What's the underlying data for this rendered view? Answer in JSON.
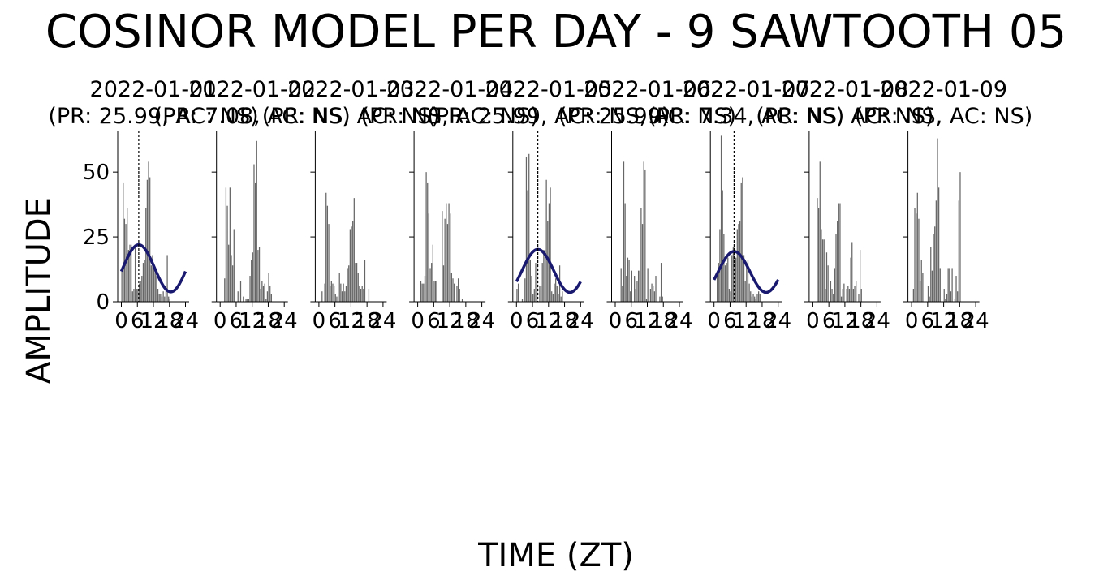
{
  "figure": {
    "title": "COSINOR MODEL PER DAY - 9 SAWTOOTH 05",
    "xlabel": "TIME (ZT)",
    "ylabel": "AMPLITUDE"
  },
  "colors": {
    "bars": "#666666",
    "cosinor_fit": "#191970",
    "acrophase_line": "#000000"
  },
  "chart_data": [
    {
      "type": "bar",
      "title": "2022-01-01\n(PR: 25.99, AC: NS)",
      "x_ticks": [
        0,
        6,
        12,
        18,
        24
      ],
      "y_ticks": [
        0,
        25,
        50
      ],
      "ylim": [
        0,
        66
      ],
      "xlim": [
        0,
        24
      ],
      "values": [
        12,
        46,
        32,
        30,
        36,
        20,
        22,
        22,
        4,
        5,
        22,
        5,
        5,
        7,
        8,
        10,
        15,
        16,
        36,
        47,
        54,
        48,
        14,
        18,
        13,
        11,
        10,
        5,
        3,
        3,
        2,
        4,
        2,
        4,
        18,
        2,
        1,
        0,
        0,
        0,
        0,
        0,
        0,
        0,
        0,
        0,
        0,
        0
      ],
      "fit": {
        "mesor": 12.9,
        "amplitude": 9.1,
        "peak_zt": 6.5
      },
      "acrophase_zt": 6.5
    },
    {
      "type": "bar",
      "title": "2022-01-02\n(PR: 7.08, AC: NS)",
      "x_ticks": [
        0,
        6,
        12,
        18,
        24
      ],
      "y_ticks": [
        0,
        25,
        50
      ],
      "ylim": [
        0,
        66
      ],
      "xlim": [
        0,
        24
      ],
      "values": [
        0,
        0,
        0,
        9,
        44,
        37,
        22,
        44,
        18,
        14,
        28,
        0,
        0,
        4,
        0,
        8,
        0,
        2,
        0,
        1,
        1,
        1,
        10,
        16,
        19,
        53,
        46,
        62,
        20,
        21,
        5,
        8,
        6,
        7,
        1,
        4,
        11,
        6,
        3,
        0,
        0,
        0,
        0,
        0,
        0,
        0,
        0,
        0
      ],
      "fit": null,
      "acrophase_zt": null
    },
    {
      "type": "bar",
      "title": "2022-01-03\n(PR: NS, AC: NS)",
      "x_ticks": [
        0,
        6,
        12,
        18,
        24
      ],
      "y_ticks": [
        0,
        25,
        50
      ],
      "ylim": [
        0,
        66
      ],
      "xlim": [
        0,
        24
      ],
      "values": [
        0,
        0,
        4,
        0,
        7,
        42,
        37,
        30,
        6,
        8,
        7,
        6,
        3,
        2,
        0,
        11,
        7,
        4,
        7,
        4,
        6,
        13,
        14,
        28,
        29,
        31,
        40,
        15,
        15,
        11,
        6,
        5,
        6,
        5,
        16,
        0,
        0,
        5,
        0,
        0,
        0,
        0,
        0,
        0,
        0,
        0,
        0,
        0
      ],
      "fit": null,
      "acrophase_zt": null
    },
    {
      "type": "bar",
      "title": "2022-01-04\n(PR: NS, AC: NS)",
      "x_ticks": [
        0,
        6,
        12,
        18,
        24
      ],
      "y_ticks": [
        0,
        25,
        50
      ],
      "ylim": [
        0,
        66
      ],
      "xlim": [
        0,
        24
      ],
      "values": [
        0,
        0,
        8,
        7,
        7,
        10,
        50,
        46,
        34,
        13,
        15,
        22,
        8,
        8,
        8,
        0,
        0,
        0,
        35,
        14,
        32,
        38,
        30,
        38,
        34,
        11,
        9,
        7,
        0,
        6,
        9,
        5,
        0,
        1,
        0,
        0,
        0,
        0,
        0,
        0,
        0,
        0,
        0,
        0,
        0,
        0,
        0,
        0
      ],
      "fit": null,
      "acrophase_zt": null
    },
    {
      "type": "bar",
      "title": "2022-01-05\n(PR: 25.99, AC: 25.99)",
      "x_ticks": [
        0,
        6,
        12,
        18,
        24
      ],
      "y_ticks": [
        0,
        25,
        50
      ],
      "ylim": [
        0,
        66
      ],
      "xlim": [
        0,
        24
      ],
      "values": [
        5,
        7,
        0,
        0,
        1,
        0,
        9,
        56,
        43,
        57,
        16,
        10,
        3,
        5,
        15,
        17,
        0,
        6,
        6,
        15,
        20,
        20,
        47,
        31,
        38,
        44,
        4,
        3,
        7,
        9,
        6,
        3,
        14,
        2,
        4,
        0,
        0,
        0,
        0,
        0,
        0,
        0,
        0,
        0,
        0,
        0,
        0,
        0
      ],
      "fit": {
        "mesor": 11.9,
        "amplitude": 8.3,
        "peak_zt": 8.0
      },
      "acrophase_zt": 8.0
    },
    {
      "type": "bar",
      "title": "2022-01-06\n(PR: NS, AC: NS)",
      "x_ticks": [
        0,
        6,
        12,
        18,
        24
      ],
      "y_ticks": [
        0,
        25,
        50
      ],
      "ylim": [
        0,
        66
      ],
      "xlim": [
        0,
        24
      ],
      "values": [
        0,
        0,
        0,
        0,
        13,
        6,
        54,
        38,
        10,
        17,
        16,
        4,
        12,
        0,
        10,
        5,
        8,
        12,
        12,
        36,
        30,
        54,
        51,
        1,
        13,
        0,
        5,
        7,
        6,
        4,
        10,
        0,
        0,
        2,
        15,
        2,
        0,
        0,
        0,
        0,
        0,
        0,
        0,
        0,
        0,
        0,
        0,
        0
      ],
      "fit": null,
      "acrophase_zt": null
    },
    {
      "type": "bar",
      "title": "2022-01-07\n(PR: 7.34, AC: NS)",
      "x_ticks": [
        0,
        6,
        12,
        18,
        24
      ],
      "y_ticks": [
        0,
        25,
        50
      ],
      "ylim": [
        0,
        66
      ],
      "xlim": [
        0,
        24
      ],
      "values": [
        0,
        0,
        10,
        15,
        28,
        64,
        43,
        26,
        14,
        15,
        17,
        5,
        4,
        18,
        21,
        21,
        17,
        28,
        30,
        31,
        46,
        48,
        18,
        8,
        14,
        16,
        7,
        4,
        2,
        3,
        2,
        1,
        3,
        4,
        3,
        0,
        0,
        0,
        0,
        0,
        0,
        0,
        0,
        0,
        0,
        0,
        0,
        0
      ],
      "fit": {
        "mesor": 11.5,
        "amplitude": 7.9,
        "peak_zt": 7.5
      },
      "acrophase_zt": 7.5
    },
    {
      "type": "bar",
      "title": "2022-01-08\n(PR: NS, AC: NS)",
      "x_ticks": [
        0,
        6,
        12,
        18,
        24
      ],
      "y_ticks": [
        0,
        25,
        50
      ],
      "ylim": [
        0,
        66
      ],
      "xlim": [
        0,
        24
      ],
      "values": [
        0,
        0,
        0,
        40,
        36,
        54,
        28,
        24,
        24,
        5,
        19,
        14,
        0,
        8,
        5,
        3,
        13,
        26,
        31,
        38,
        38,
        2,
        5,
        7,
        0,
        5,
        6,
        5,
        17,
        23,
        5,
        6,
        8,
        0,
        3,
        20,
        5,
        0,
        0,
        0,
        0,
        0,
        0,
        0,
        0,
        0,
        0,
        0
      ],
      "fit": null,
      "acrophase_zt": null
    },
    {
      "type": "bar",
      "title": "2022-01-09\n(PR: NS, AC: NS)",
      "x_ticks": [
        0,
        6,
        12,
        18,
        24
      ],
      "y_ticks": [
        0,
        25,
        50
      ],
      "ylim": [
        0,
        66
      ],
      "xlim": [
        0,
        24
      ],
      "values": [
        0,
        5,
        36,
        34,
        42,
        32,
        8,
        16,
        11,
        0,
        0,
        0,
        6,
        2,
        21,
        12,
        26,
        29,
        39,
        63,
        44,
        13,
        0,
        0,
        5,
        1,
        3,
        13,
        13,
        4,
        13,
        0,
        1,
        10,
        4,
        39,
        50,
        0,
        0,
        0,
        0,
        0,
        0,
        0,
        0,
        0,
        0,
        0
      ],
      "fit": null,
      "acrophase_zt": null
    }
  ]
}
